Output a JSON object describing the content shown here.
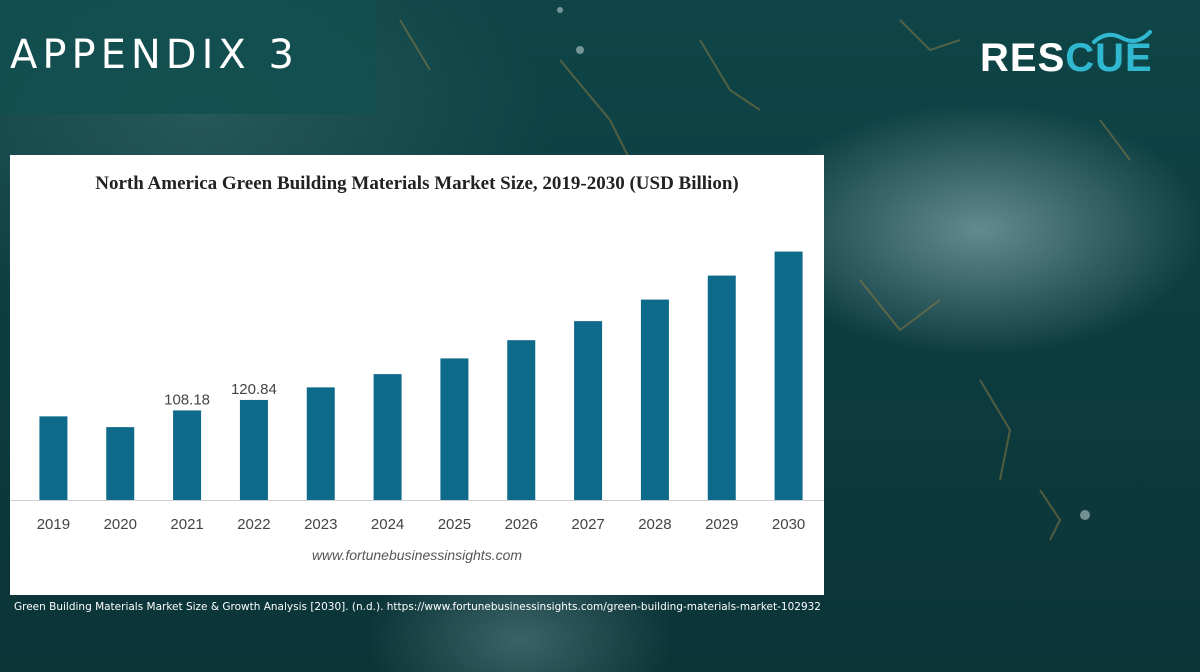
{
  "slide": {
    "title": "APPENDIX 3",
    "logo": {
      "text_a": "RES",
      "text_b": "CUE"
    },
    "citation": "Green Building Materials Market Size & Growth Analysis [2030]. (n.d.). https://www.fortunebusinessinsights.com/green-building-materials-market-102932",
    "colors": {
      "panel": "#124e50",
      "logo_accent": "#2fb8cf"
    }
  },
  "chart_data": {
    "type": "bar",
    "title": "North America Green Building Materials Market Size, 2019-2030 (USD Billion)",
    "source": "www.fortunebusinessinsights.com",
    "categories": [
      "2019",
      "2020",
      "2021",
      "2022",
      "2023",
      "2024",
      "2025",
      "2026",
      "2027",
      "2028",
      "2029",
      "2030"
    ],
    "values": [
      101,
      88,
      108.18,
      120.84,
      136,
      152,
      171,
      193,
      216,
      242,
      271,
      300
    ],
    "data_labels": {
      "2": "108.18",
      "3": "120.84"
    },
    "ylim": [
      0,
      320
    ],
    "xlabel": "",
    "ylabel": "",
    "grid": false,
    "bar_color": "#0e6a8b"
  }
}
